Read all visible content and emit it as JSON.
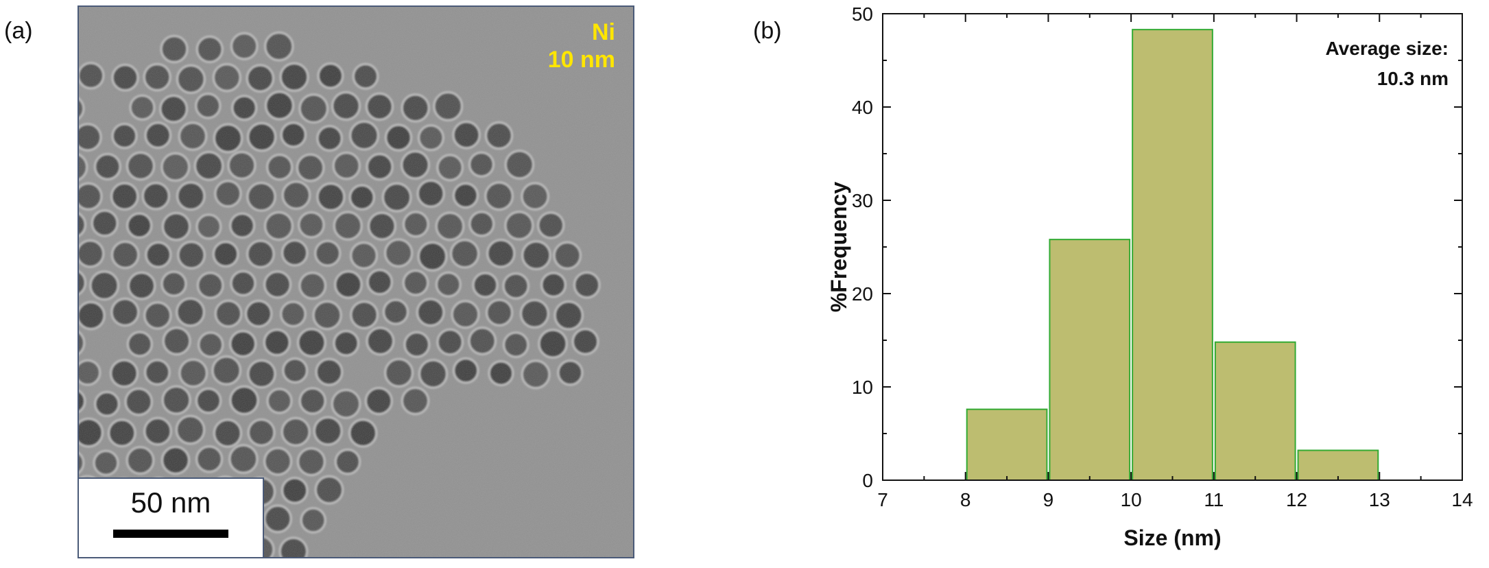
{
  "panel_a": {
    "label": "(a)",
    "material_label": "Ni",
    "size_label": "10 nm",
    "scale_bar_label": "50 nm"
  },
  "panel_b": {
    "label": "(b)"
  },
  "chart_data": {
    "type": "bar",
    "title": "",
    "xlabel": "Size (nm)",
    "ylabel": "%Frequency",
    "xlim": [
      7,
      14
    ],
    "ylim": [
      0,
      50
    ],
    "xticks": [
      7,
      8,
      9,
      10,
      11,
      12,
      13,
      14
    ],
    "yticks": [
      0,
      10,
      20,
      30,
      40,
      50
    ],
    "bins": [
      {
        "start": 8,
        "end": 9,
        "value": 7.6
      },
      {
        "start": 9,
        "end": 10,
        "value": 25.8
      },
      {
        "start": 10,
        "end": 11,
        "value": 48.3
      },
      {
        "start": 11,
        "end": 12,
        "value": 14.8
      },
      {
        "start": 12,
        "end": 13,
        "value": 3.2
      }
    ],
    "annotation": {
      "line1": "Average size:",
      "line2": "10.3 nm"
    },
    "bar_fill": "#bdbd70",
    "bar_edge": "#33aa33",
    "grid": false
  }
}
